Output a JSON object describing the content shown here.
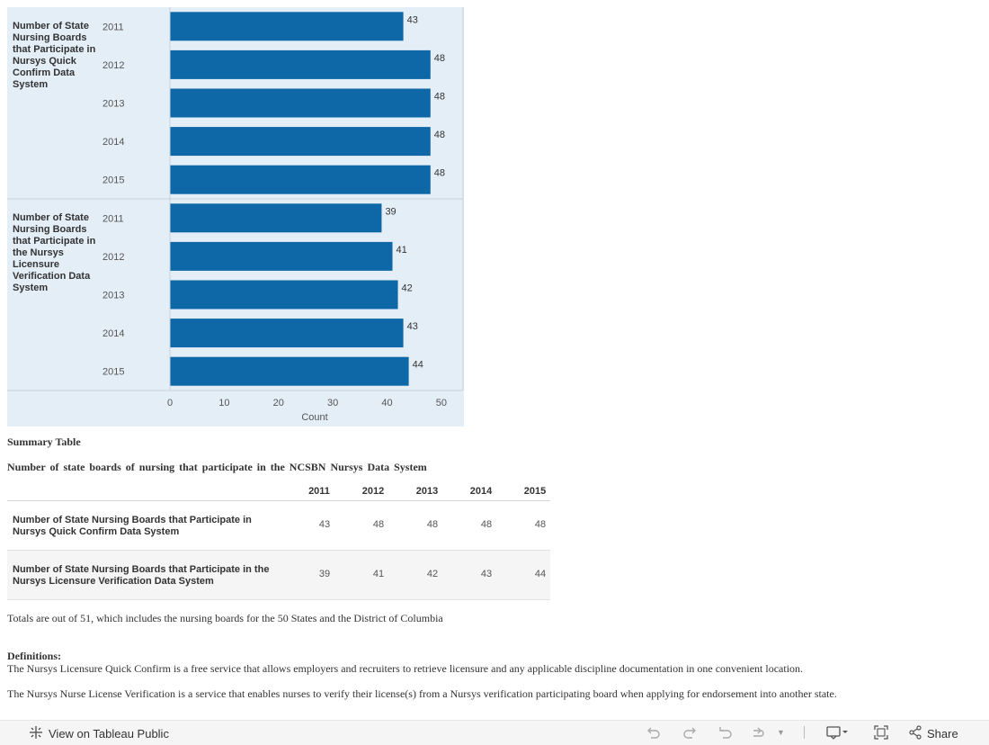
{
  "chart_data": {
    "type": "bar",
    "orientation": "horizontal",
    "groups": [
      {
        "label_lines": [
          "Number of State",
          "Nursing Boards",
          "that Participate in",
          "Nursys Quick",
          "Confirm Data",
          "System"
        ],
        "categories": [
          "2011",
          "2012",
          "2013",
          "2014",
          "2015"
        ],
        "values": [
          43,
          48,
          48,
          48,
          48
        ]
      },
      {
        "label_lines": [
          "Number of State",
          "Nursing Boards",
          "that Participate in",
          "the Nursys",
          "Licensure",
          "Verification Data",
          "System"
        ],
        "categories": [
          "2011",
          "2012",
          "2013",
          "2014",
          "2015"
        ],
        "values": [
          39,
          41,
          42,
          43,
          44
        ]
      }
    ],
    "xlabel": "Count",
    "xlim": [
      0,
      54
    ],
    "xticks": [
      0,
      10,
      20,
      30,
      40,
      50
    ],
    "bar_color": "#0e68a8",
    "background": "#e4eef7"
  },
  "summary": {
    "label": "Summary Table",
    "title": "Number of state boards of nursing that participate in the NCSBN Nursys Data System",
    "columns": [
      "2011",
      "2012",
      "2013",
      "2014",
      "2015"
    ],
    "rows": [
      {
        "label": "Number of State Nursing Boards that Participate in Nursys Quick Confirm Data System",
        "values": [
          "43",
          "48",
          "48",
          "48",
          "48"
        ]
      },
      {
        "label": "Number of State Nursing Boards that Participate in the Nursys Licensure Verification Data System",
        "values": [
          "39",
          "41",
          "42",
          "43",
          "44"
        ]
      }
    ],
    "note": "Totals are out of 51, which includes the nursing boards for the 50 States and the District of Columbia"
  },
  "definitions": {
    "heading": "Definitions:",
    "quick_confirm": "The Nursys Licensure Quick Confirm is a free service that allows employers and recruiters to retrieve licensure and any applicable discipline documentation in one convenient location.",
    "license_verification": "The Nursys Nurse License Verification is a service that enables nurses to verify their license(s) from a Nursys verification participating board when applying for endorsement into another state."
  },
  "toolbar": {
    "view_label": "View on Tableau Public",
    "share_label": "Share"
  }
}
